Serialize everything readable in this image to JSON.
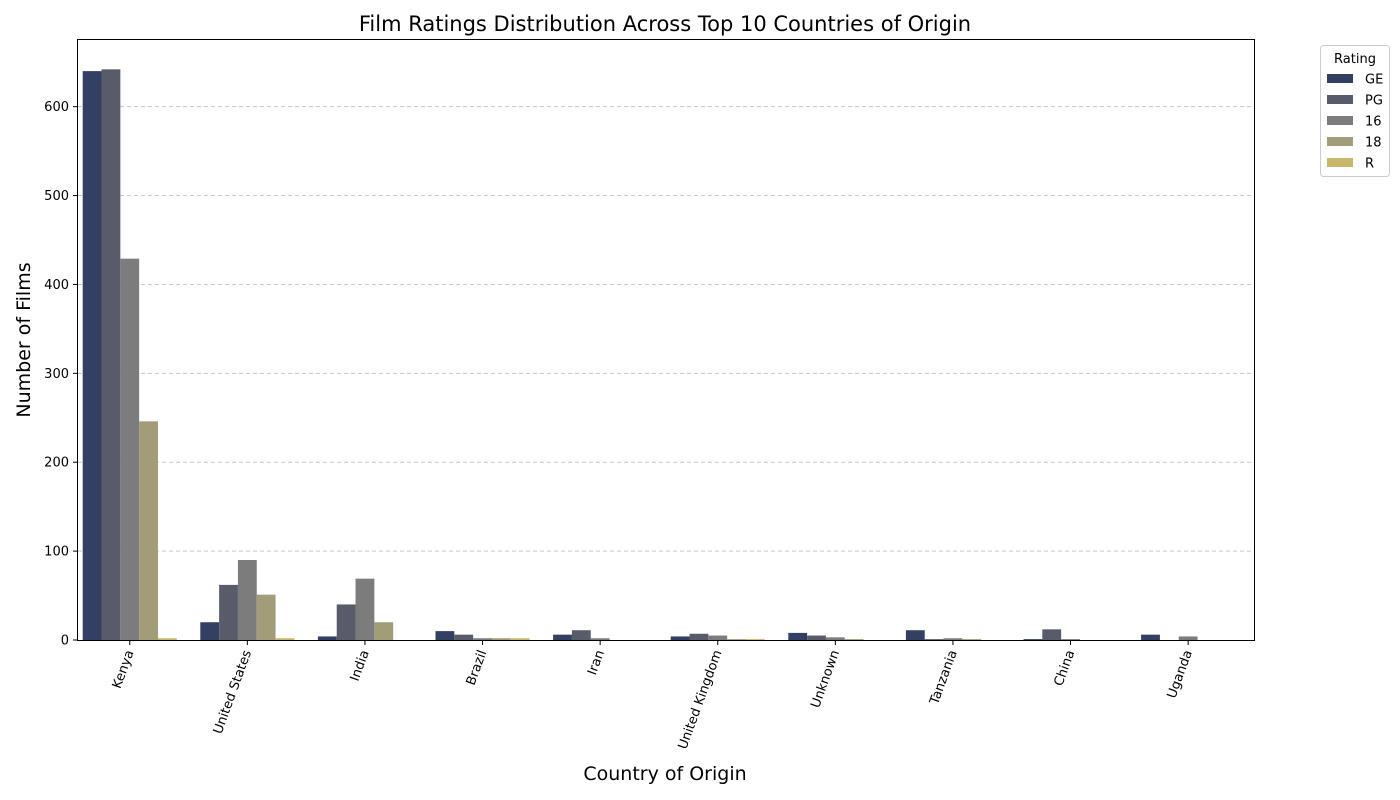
{
  "chart_data": {
    "type": "bar",
    "title": "Film Ratings Distribution Across Top 10 Countries of Origin",
    "xlabel": "Country of Origin",
    "ylabel": "Number of Films",
    "ylim": [
      0,
      675
    ],
    "yticks": [
      0,
      100,
      200,
      300,
      400,
      500,
      600
    ],
    "grid": true,
    "legend_title": "Rating",
    "legend_position": "outside-top-right",
    "categories": [
      "Kenya",
      "United States",
      "India",
      "Brazil",
      "Iran",
      "United Kingdom",
      "Unknown",
      "Tanzania",
      "China",
      "Uganda"
    ],
    "series": [
      {
        "name": "GE",
        "color": "#343f64",
        "values": [
          640,
          20,
          4,
          10,
          6,
          4,
          8,
          11,
          1,
          6
        ]
      },
      {
        "name": "PG",
        "color": "#585c6a",
        "values": [
          642,
          62,
          40,
          6,
          11,
          7,
          5,
          1,
          12,
          0
        ]
      },
      {
        "name": "16",
        "color": "#7c7c7c",
        "values": [
          429,
          90,
          69,
          2,
          2,
          5,
          3,
          2,
          1,
          4
        ]
      },
      {
        "name": "18",
        "color": "#a39c79",
        "values": [
          246,
          51,
          20,
          2,
          0,
          1,
          1,
          1,
          0,
          0
        ]
      },
      {
        "name": "R",
        "color": "#c9b769",
        "values": [
          2,
          2,
          0,
          2,
          0,
          1,
          0,
          0,
          0,
          0
        ]
      }
    ]
  }
}
